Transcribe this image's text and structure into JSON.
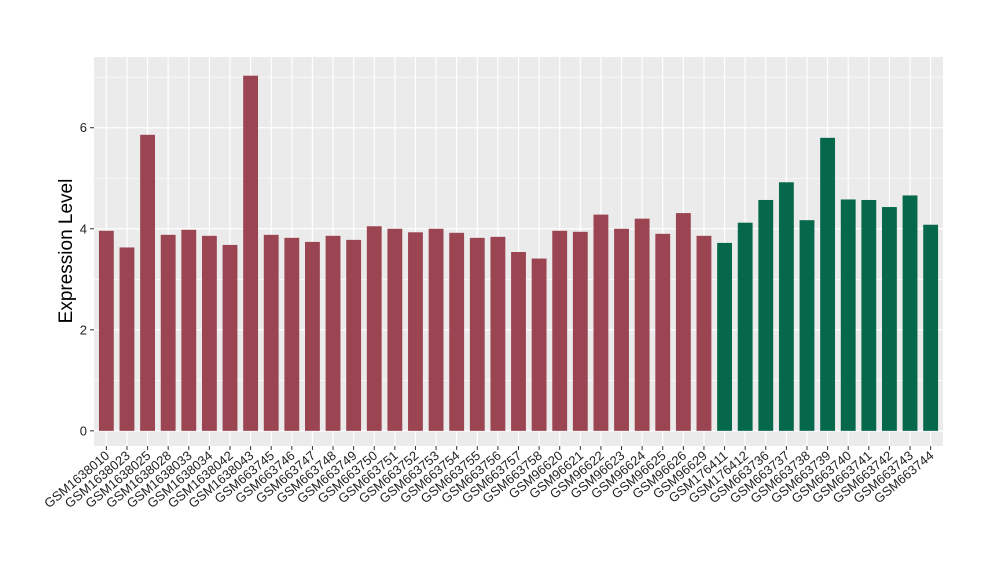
{
  "chart_data": {
    "type": "bar",
    "ylabel": "Expression Level",
    "ylim": [
      -0.3,
      7.4
    ],
    "yticks": [
      0,
      2,
      4,
      6
    ],
    "grid": true,
    "colors": {
      "group1": "#9b4452",
      "group2": "#05684a",
      "panel": "#ebebeb",
      "grid": "#ffffff"
    },
    "categories": [
      "GSM1638010",
      "GSM1638023",
      "GSM1638025",
      "GSM1638028",
      "GSM1638033",
      "GSM1638034",
      "GSM1638042",
      "GSM1638043",
      "GSM663745",
      "GSM663746",
      "GSM663747",
      "GSM663748",
      "GSM663749",
      "GSM663750",
      "GSM663751",
      "GSM663752",
      "GSM663753",
      "GSM663754",
      "GSM663755",
      "GSM663756",
      "GSM663757",
      "GSM663758",
      "GSM96620",
      "GSM96621",
      "GSM96622",
      "GSM96623",
      "GSM96624",
      "GSM96625",
      "GSM96626",
      "GSM96629",
      "GSM176411",
      "GSM176412",
      "GSM663736",
      "GSM663737",
      "GSM663738",
      "GSM663739",
      "GSM663740",
      "GSM663741",
      "GSM663742",
      "GSM663743",
      "GSM663744"
    ],
    "values": [
      3.96,
      3.63,
      5.86,
      3.88,
      3.98,
      3.86,
      3.68,
      7.03,
      3.88,
      3.82,
      3.74,
      3.86,
      3.78,
      4.05,
      4.0,
      3.93,
      4.0,
      3.92,
      3.82,
      3.84,
      3.54,
      3.41,
      3.96,
      3.94,
      4.28,
      4.0,
      4.2,
      3.9,
      4.31,
      3.86,
      3.72,
      4.12,
      4.57,
      4.92,
      4.17,
      5.8,
      4.58,
      4.57,
      4.43,
      4.66,
      4.08
    ],
    "groups": [
      "group1",
      "group1",
      "group1",
      "group1",
      "group1",
      "group1",
      "group1",
      "group1",
      "group1",
      "group1",
      "group1",
      "group1",
      "group1",
      "group1",
      "group1",
      "group1",
      "group1",
      "group1",
      "group1",
      "group1",
      "group1",
      "group1",
      "group1",
      "group1",
      "group1",
      "group1",
      "group1",
      "group1",
      "group1",
      "group1",
      "group2",
      "group2",
      "group2",
      "group2",
      "group2",
      "group2",
      "group2",
      "group2",
      "group2",
      "group2",
      "group2"
    ]
  }
}
